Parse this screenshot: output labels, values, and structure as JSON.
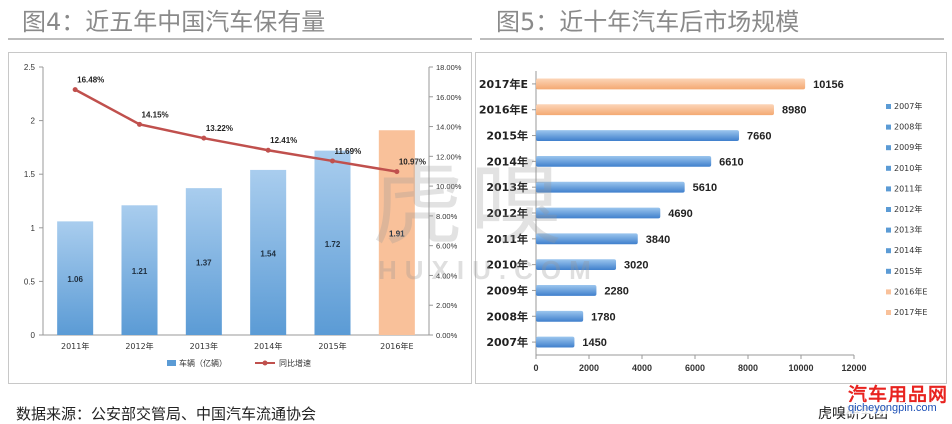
{
  "headings": {
    "left": "图4：近五年中国汽车保有量",
    "right": "图5：近十年汽车后市场规模"
  },
  "footer": {
    "source": "数据来源：公安部交管局、中国汽车流通协会",
    "right": "虎嗅研究团",
    "brand": "汽车用品网",
    "brand_url": "qicheyongpin.com"
  },
  "watermark": {
    "text": "虎嗅",
    "latin": "HUXIU.COM"
  },
  "chart_data": [
    {
      "type": "bar",
      "categories": [
        "2011年",
        "2012年",
        "2013年",
        "2014年",
        "2015年",
        "2016年E"
      ],
      "series": [
        {
          "name": "车辆（亿辆）",
          "values": [
            1.06,
            1.21,
            1.37,
            1.54,
            1.72,
            1.91
          ],
          "color": "#5b9bd5",
          "estimate_color": "#f9c19a",
          "value_labels": [
            "1.06",
            "1.21",
            "1.37",
            "1.54",
            "1.72",
            "1.91"
          ]
        },
        {
          "name": "同比增速",
          "type": "line",
          "axis": "right",
          "values": [
            16.48,
            14.15,
            13.22,
            12.41,
            11.69,
            10.97
          ],
          "color": "#c0504d",
          "value_labels": [
            "16.48%",
            "14.15%",
            "13.22%",
            "12.41%",
            "11.69%",
            "10.97%"
          ]
        }
      ],
      "ylim": [
        0,
        2.5
      ],
      "y_ticks": [
        "0",
        "0.5",
        "1",
        "1.5",
        "2",
        "2.5"
      ],
      "y2lim": [
        0,
        18
      ],
      "y2_ticks": [
        "0.00%",
        "2.00%",
        "4.00%",
        "6.00%",
        "8.00%",
        "10.00%",
        "12.00%",
        "14.00%",
        "16.00%",
        "18.00%"
      ],
      "legend": "bottom"
    },
    {
      "type": "bar",
      "orientation": "horizontal",
      "categories": [
        "2007年",
        "2008年",
        "2009年",
        "2010年",
        "2011年",
        "2012年",
        "2013年",
        "2014年",
        "2015年",
        "2016年E",
        "2017年E"
      ],
      "values": [
        1450,
        1780,
        2280,
        3020,
        3840,
        4690,
        5610,
        6610,
        7660,
        8980,
        10156
      ],
      "colors": [
        "#5b9bd5",
        "#5b9bd5",
        "#5b9bd5",
        "#5b9bd5",
        "#5b9bd5",
        "#5b9bd5",
        "#5b9bd5",
        "#5b9bd5",
        "#5b9bd5",
        "#f9c19a",
        "#f9c19a"
      ],
      "xlim": [
        0,
        12000
      ],
      "x_ticks": [
        "0",
        "2000",
        "4000",
        "6000",
        "8000",
        "10000",
        "12000"
      ],
      "legend": "right",
      "legend_entries": [
        "2007年",
        "2008年",
        "2009年",
        "2010年",
        "2011年",
        "2012年",
        "2013年",
        "2014年",
        "2015年",
        "2016年E",
        "2017年E"
      ]
    }
  ]
}
